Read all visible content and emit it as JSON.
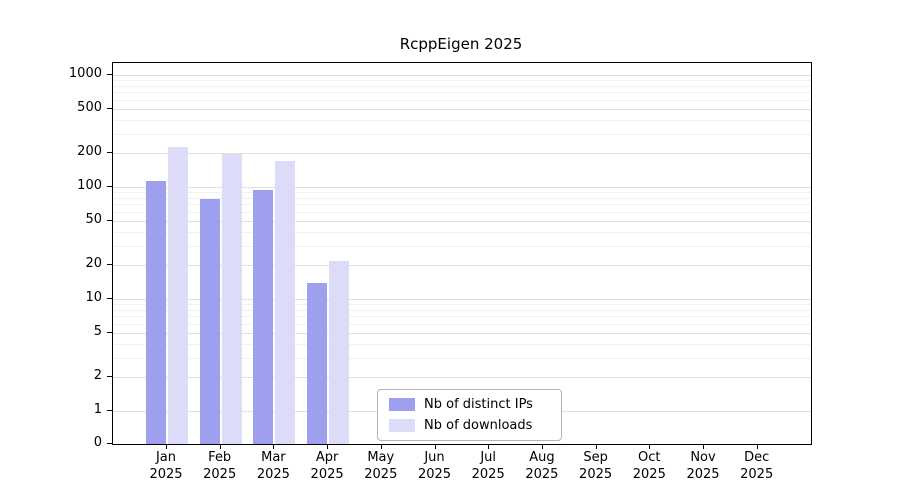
{
  "chart_data": {
    "type": "bar",
    "title": "RcppEigen 2025",
    "year": "2025",
    "categories": [
      "Jan",
      "Feb",
      "Mar",
      "Apr",
      "May",
      "Jun",
      "Jul",
      "Aug",
      "Sep",
      "Oct",
      "Nov",
      "Dec"
    ],
    "series": [
      {
        "name": "Nb of distinct IPs",
        "color": "#9f9fef",
        "values": [
          113,
          78,
          94,
          14,
          0,
          0,
          0,
          0,
          0,
          0,
          0,
          0
        ]
      },
      {
        "name": "Nb of downloads",
        "color": "#dcdcf8",
        "values": [
          227,
          196,
          170,
          22,
          0,
          0,
          0,
          0,
          0,
          0,
          0,
          0
        ]
      }
    ],
    "yscale": "symlog",
    "yticks": [
      0,
      1,
      2,
      5,
      10,
      20,
      50,
      100,
      200,
      500,
      1000
    ],
    "ylim": [
      0,
      1300
    ],
    "grid": true,
    "legend_position": "lower center",
    "xlabel": "",
    "ylabel": ""
  }
}
